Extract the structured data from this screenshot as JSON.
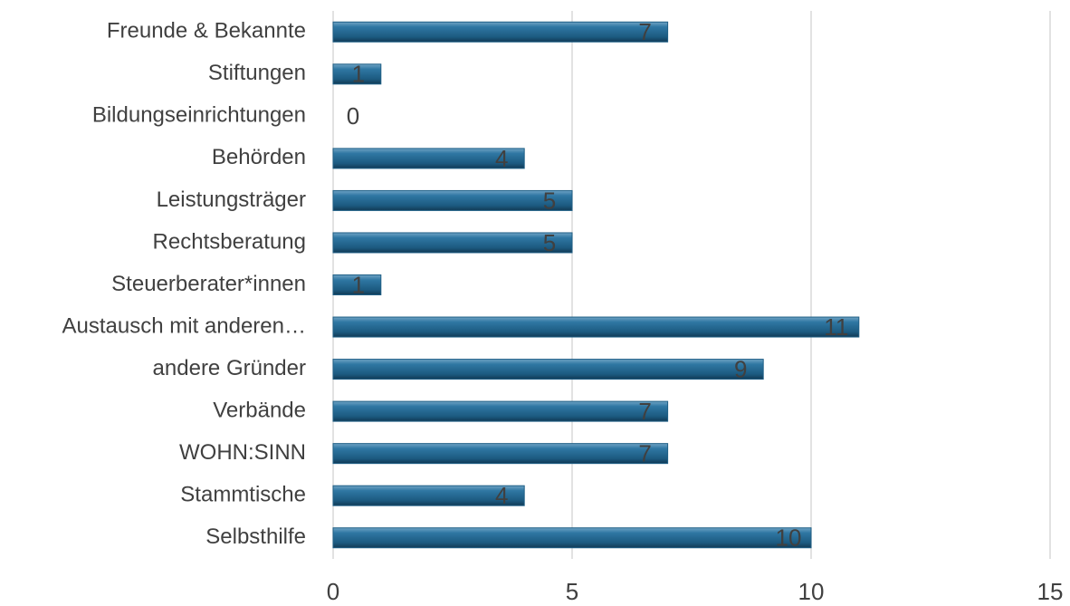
{
  "chart_data": {
    "type": "bar",
    "orientation": "horizontal",
    "categories": [
      "Freunde & Bekannte",
      "Stiftungen",
      "Bildungseinrichtungen",
      "Behörden",
      "Leistungsträger",
      "Rechtsberatung",
      "Steuerberater*innen",
      "Austausch mit anderen…",
      "andere Gründer",
      "Verbände",
      "WOHN:SINN",
      "Stammtische",
      "Selbsthilfe"
    ],
    "values": [
      7,
      1,
      0,
      4,
      5,
      5,
      1,
      11,
      9,
      7,
      7,
      4,
      10
    ],
    "color": "#1f5f86",
    "xlim": [
      0,
      15
    ],
    "xticks": [
      0,
      5,
      10,
      15
    ],
    "grid": true
  }
}
